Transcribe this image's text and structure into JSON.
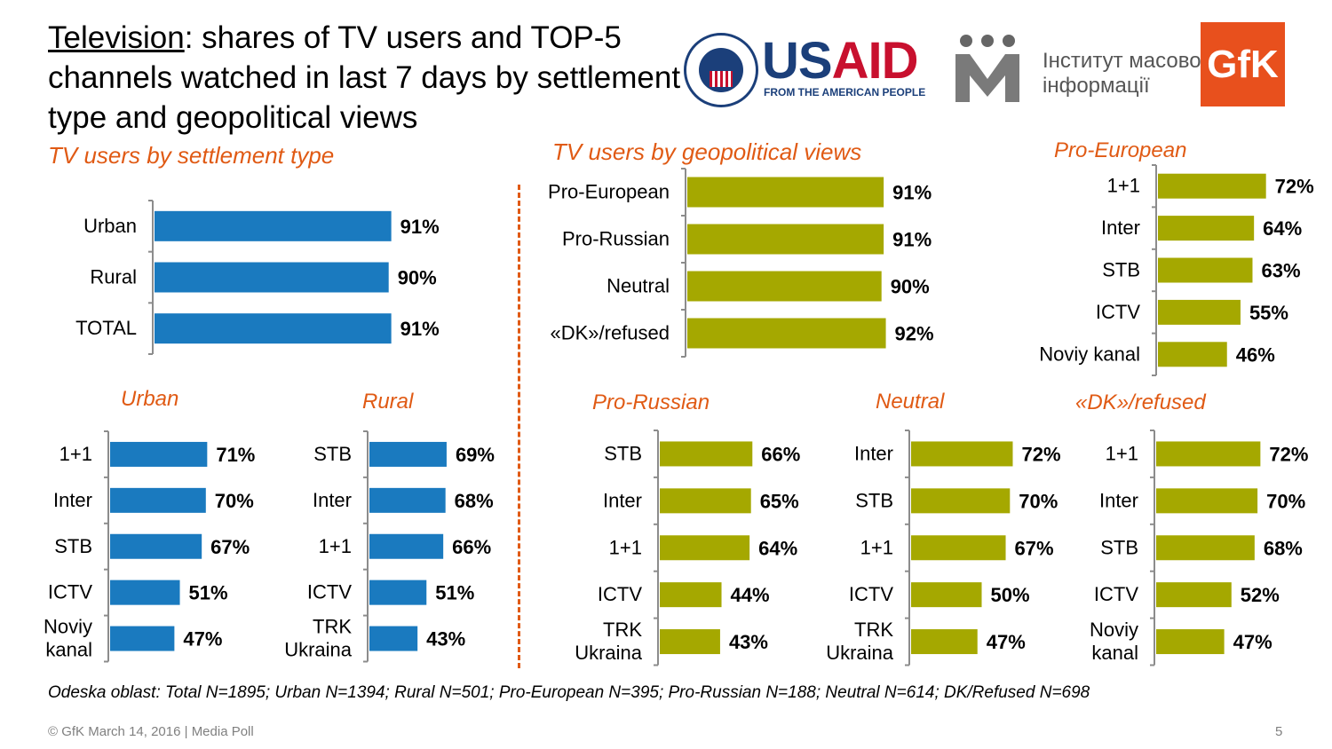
{
  "header": {
    "title_underlined": "Television",
    "title_rest": ": shares of TV users and TOP-5 channels watched in last 7 days by settlement type and geopolitical views"
  },
  "logos": {
    "usaid_part1": "US",
    "usaid_part2": "AID",
    "usaid_sub": "FROM THE AMERICAN PEOPLE",
    "usaid_seal_text": "USAID",
    "imi_line1": "Інститут масової",
    "imi_line2": "інформації",
    "gfk": "GfK"
  },
  "sections": {
    "settlement_title": "TV users by settlement type",
    "geo_title": "TV users by geopolitical views"
  },
  "colors": {
    "blue": "#1a7abf",
    "olive": "#a5a800",
    "accent": "#e05a14"
  },
  "chart_data": [
    {
      "id": "settlement",
      "type": "bar",
      "title": "TV users by settlement type",
      "color": "blue",
      "categories": [
        "Urban",
        "Rural",
        "TOTAL"
      ],
      "values": [
        91,
        90,
        91
      ],
      "labels": [
        "91%",
        "90%",
        "91%"
      ]
    },
    {
      "id": "geo",
      "type": "bar",
      "title": "TV users by geopolitical views",
      "color": "olive",
      "categories": [
        "Pro-European",
        "Pro-Russian",
        "Neutral",
        "«DK»/refused"
      ],
      "values": [
        91,
        91,
        90,
        92
      ],
      "labels": [
        "91%",
        "91%",
        "90%",
        "92%"
      ]
    },
    {
      "id": "pro_european",
      "type": "bar",
      "title": "Pro-European",
      "color": "olive",
      "categories": [
        "1+1",
        "Inter",
        "STB",
        "ICTV",
        "Noviy kanal"
      ],
      "values": [
        72,
        64,
        63,
        55,
        46
      ],
      "labels": [
        "72%",
        "64%",
        "63%",
        "55%",
        "46%"
      ]
    },
    {
      "id": "urban",
      "type": "bar",
      "title": "Urban",
      "color": "blue",
      "categories": [
        "1+1",
        "Inter",
        "STB",
        "ICTV",
        "Noviy kanal"
      ],
      "values": [
        71,
        70,
        67,
        51,
        47
      ],
      "labels": [
        "71%",
        "70%",
        "67%",
        "51%",
        "47%"
      ]
    },
    {
      "id": "rural",
      "type": "bar",
      "title": "Rural",
      "color": "blue",
      "categories": [
        "STB",
        "Inter",
        "1+1",
        "ICTV",
        "TRK Ukraina"
      ],
      "values": [
        69,
        68,
        66,
        51,
        43
      ],
      "labels": [
        "69%",
        "68%",
        "66%",
        "51%",
        "43%"
      ]
    },
    {
      "id": "pro_russian",
      "type": "bar",
      "title": "Pro-Russian",
      "color": "olive",
      "categories": [
        "STB",
        "Inter",
        "1+1",
        "ICTV",
        "TRK Ukraina"
      ],
      "values": [
        66,
        65,
        64,
        44,
        43
      ],
      "labels": [
        "66%",
        "65%",
        "64%",
        "44%",
        "43%"
      ]
    },
    {
      "id": "neutral",
      "type": "bar",
      "title": "Neutral",
      "color": "olive",
      "categories": [
        "Inter",
        "STB",
        "1+1",
        "ICTV",
        "TRK Ukraina"
      ],
      "values": [
        72,
        70,
        67,
        50,
        47
      ],
      "labels": [
        "72%",
        "70%",
        "67%",
        "50%",
        "47%"
      ]
    },
    {
      "id": "dk_refused",
      "type": "bar",
      "title": "«DK»/refused",
      "color": "olive",
      "categories": [
        "1+1",
        "Inter",
        "STB",
        "ICTV",
        "Noviy kanal"
      ],
      "values": [
        72,
        70,
        68,
        52,
        47
      ],
      "labels": [
        "72%",
        "70%",
        "68%",
        "52%",
        "47%"
      ]
    }
  ],
  "footnote": "Odeska oblast: Total N=1895; Urban N=1394; Rural N=501; Pro-European N=395; Pro-Russian N=188; Neutral N=614; DK/Refused N=698",
  "footer": {
    "copyright": "© GfK March 14, 2016 | Media Poll",
    "page": "5"
  }
}
